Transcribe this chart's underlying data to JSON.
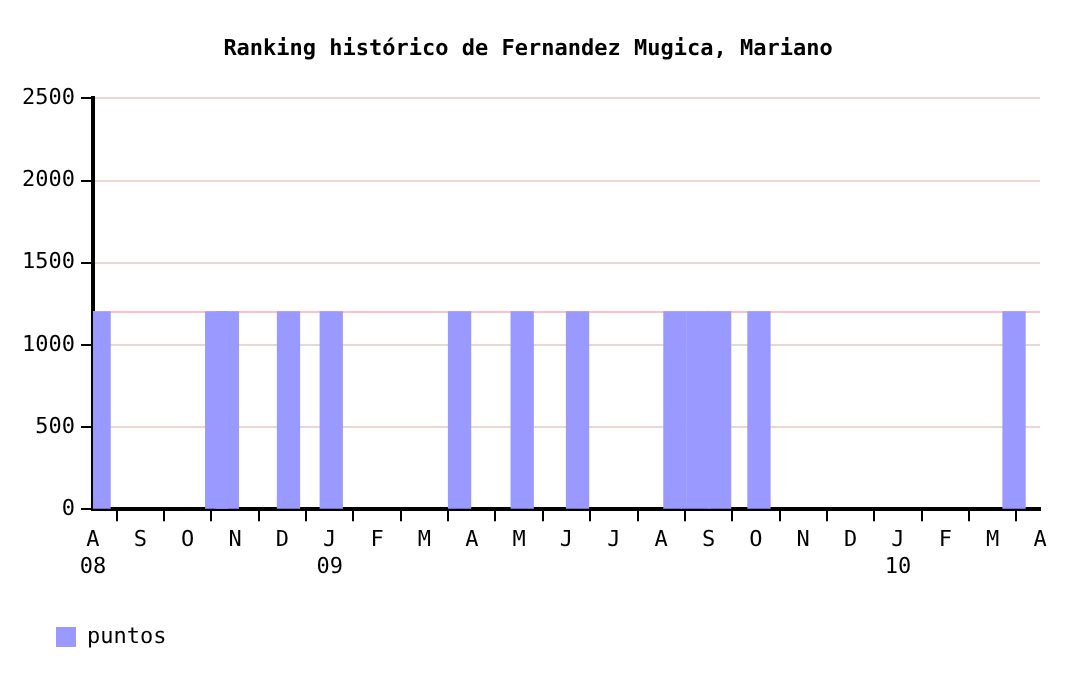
{
  "chart_data": {
    "type": "bar",
    "title": "Ranking histórico de Fernandez Mugica, Mariano",
    "x": [
      "2008-08-05",
      "2008-10-20",
      "2008-10-27",
      "2008-12-05",
      "2009-01-02",
      "2009-03-24",
      "2009-05-03",
      "2009-06-08",
      "2009-08-10",
      "2009-08-25",
      "2009-09-08",
      "2009-10-03",
      "2010-03-15"
    ],
    "series": [
      {
        "name": "puntos",
        "color": "#9999ff",
        "values": [
          1200,
          1200,
          1200,
          1200,
          1200,
          1200,
          1200,
          1200,
          1200,
          1200,
          1200,
          1200,
          1200
        ]
      }
    ],
    "xlim": [
      "2008-08",
      "2010-04"
    ],
    "xticks": [
      {
        "value": "2008-08",
        "label": "A\n08"
      },
      {
        "value": "2008-09",
        "label": "S"
      },
      {
        "value": "2008-10",
        "label": "O"
      },
      {
        "value": "2008-11",
        "label": "N"
      },
      {
        "value": "2008-12",
        "label": "D"
      },
      {
        "value": "2009-01",
        "label": "J\n09"
      },
      {
        "value": "2009-02",
        "label": "F"
      },
      {
        "value": "2009-03",
        "label": "M"
      },
      {
        "value": "2009-04",
        "label": "A"
      },
      {
        "value": "2009-05",
        "label": "M"
      },
      {
        "value": "2009-06",
        "label": "J"
      },
      {
        "value": "2009-07",
        "label": "J"
      },
      {
        "value": "2009-08",
        "label": "A"
      },
      {
        "value": "2009-09",
        "label": "S"
      },
      {
        "value": "2009-10",
        "label": "O"
      },
      {
        "value": "2009-11",
        "label": "N"
      },
      {
        "value": "2009-12",
        "label": "D"
      },
      {
        "value": "2010-01",
        "label": "J\n10"
      },
      {
        "value": "2010-02",
        "label": "F"
      },
      {
        "value": "2010-03",
        "label": "M"
      },
      {
        "value": "2010-04",
        "label": "A"
      }
    ],
    "ylim": [
      0,
      2500
    ],
    "yticks": [
      0,
      500,
      1000,
      1500,
      2000,
      2500
    ],
    "grid": "y",
    "legend": "bottom left",
    "ref_lines": [
      {
        "axis": "y",
        "value": 1200,
        "color": "#ffc0cb"
      }
    ]
  }
}
